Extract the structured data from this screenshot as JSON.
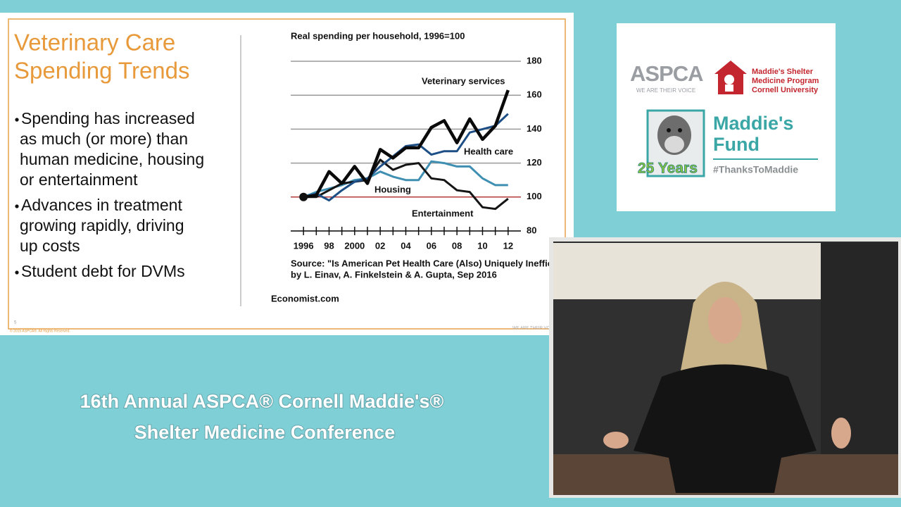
{
  "slide": {
    "title": [
      "Veterinary Care",
      "Spending Trends"
    ],
    "bullets": [
      [
        "Spending has increased",
        "as much (or more) than",
        "human medicine, housing",
        "or entertainment"
      ],
      [
        "Advances in treatment",
        "growing rapidly, driving",
        "up costs"
      ],
      [
        "Student debt for DVMs"
      ]
    ],
    "page_number": "5",
    "footer": "© 2015 ASPCA®. All Rights Reserved.",
    "footer_right": "WE ARE THEIR VOICE"
  },
  "chart_data": {
    "type": "line",
    "title": "Real spending per household, 1996=100",
    "x": [
      1996,
      1997,
      1998,
      1999,
      2000,
      2001,
      2002,
      2003,
      2004,
      2005,
      2006,
      2007,
      2008,
      2009,
      2010,
      2011,
      2012
    ],
    "xlim": [
      1995,
      2013
    ],
    "xticks": [
      1996,
      {
        "value": 1998,
        "label": "98"
      },
      2000,
      {
        "value": 2002,
        "label": "02"
      },
      {
        "value": 2004,
        "label": "04"
      },
      {
        "value": 2006,
        "label": "06"
      },
      {
        "value": 2008,
        "label": "08"
      },
      {
        "value": 2010,
        "label": "10"
      },
      {
        "value": 2012,
        "label": "12"
      }
    ],
    "ylim": [
      80,
      180
    ],
    "yticks": [
      80,
      100,
      120,
      140,
      160,
      180
    ],
    "baseline": 100,
    "baseline_color": "#b23a3a",
    "grid": true,
    "series": [
      {
        "name": "Housing",
        "color": "#3f8fb3",
        "line_width": 3,
        "values": [
          100,
          103,
          105,
          107,
          110,
          111,
          115,
          112,
          110,
          110,
          121,
          120,
          118,
          118,
          111,
          107,
          107
        ]
      },
      {
        "name": "Entertainment",
        "color": "#151515",
        "line_width": 3,
        "values": [
          100,
          100,
          104,
          108,
          109,
          110,
          122,
          116,
          119,
          120,
          111,
          110,
          104,
          103,
          94,
          93,
          99
        ]
      },
      {
        "name": "Health care",
        "color": "#1d4f86",
        "line_width": 3,
        "values": [
          100,
          102,
          98,
          104,
          109,
          111,
          118,
          124,
          130,
          131,
          125,
          127,
          127,
          138,
          140,
          142,
          149
        ]
      },
      {
        "name": "Veterinary services",
        "color": "#0a0a0a",
        "line_width": 4.5,
        "values": [
          100,
          101,
          115,
          108,
          118,
          108,
          128,
          123,
          129,
          129,
          141,
          145,
          132,
          146,
          134,
          142,
          163
        ]
      }
    ],
    "source": [
      "Source: \"Is American Pet Health Care (Also) Uniquely Inefficient?\",",
      "by L. Einav, A. Finkelstein & A. Gupta, Sep 2016"
    ],
    "credit": "Economist.com"
  },
  "logos": {
    "aspca": "ASPCA",
    "aspca_tagline": "WE ARE THEIR VOICE",
    "maddies_program": [
      "Maddie's Shelter",
      "Medicine Program",
      "Cornell University"
    ],
    "maddies_fund": [
      "Maddie's",
      "Fund"
    ],
    "anniversary": "25 Years",
    "hashtag": "#ThanksToMaddie"
  },
  "conference_title": [
    "16th Annual ASPCA® Cornell Maddie's®",
    "Shelter Medicine Conference"
  ]
}
